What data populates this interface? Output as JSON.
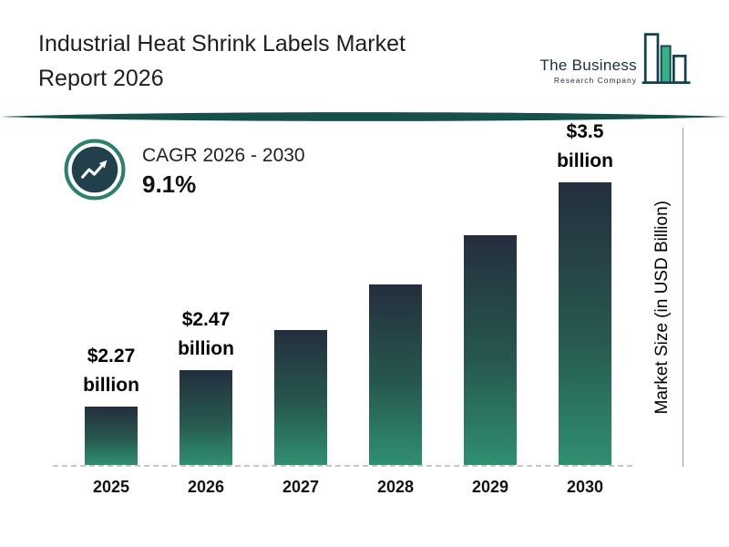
{
  "header": {
    "title_line1": "Industrial Heat Shrink Labels Market",
    "title_line2": "Report 2026",
    "logo": {
      "name_line1": "The Business",
      "name_line2": "Research Company"
    }
  },
  "cagr": {
    "label": "CAGR 2026 - 2030",
    "value": "9.1%"
  },
  "y_axis_label": "Market Size (in USD Billion)",
  "chart_data": {
    "type": "bar",
    "title": "Industrial Heat Shrink Labels Market Report 2026",
    "categories": [
      "2025",
      "2026",
      "2027",
      "2028",
      "2029",
      "2030"
    ],
    "values": [
      2.27,
      2.47,
      2.69,
      2.94,
      3.21,
      3.5
    ],
    "data_labels": [
      "$2.27 billion",
      "$2.47 billion",
      null,
      null,
      null,
      "$3.5 billion"
    ],
    "xlabel": "",
    "ylabel": "Market Size (in USD Billion)",
    "ylim": [
      1.95,
      3.6
    ],
    "grid": false,
    "legend": false,
    "cagr_label": "CAGR 2026 - 2030",
    "cagr_value": "9.1%",
    "unit": "USD Billion"
  },
  "colors": {
    "bar_gradient_top": "#242e3e",
    "bar_gradient_bottom": "#2f8f71",
    "divider_teal": "#15504a",
    "badge_ring": "#2e7f6e",
    "badge_inner": "#22404b",
    "logo_green": "#35b188",
    "logo_outline": "#14404c"
  }
}
